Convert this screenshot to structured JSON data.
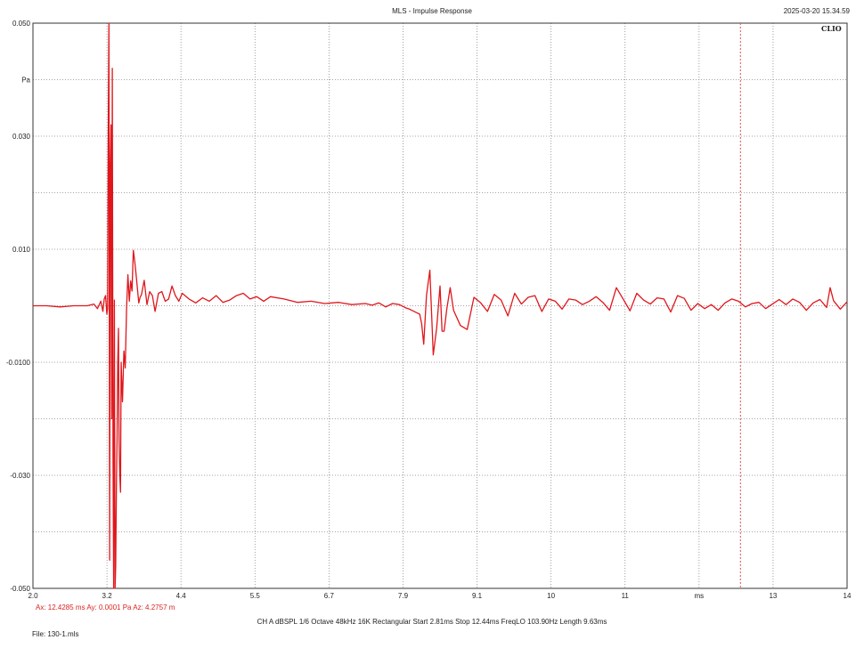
{
  "header": {
    "title": "MLS - Impulse Response",
    "timestamp": "2025-03-20 15.34.59",
    "brand": "CLIO"
  },
  "cursor": {
    "readout": "Ax: 12.4285 ms   Ay: 0.0001 Pa   Az: 4.2757 m",
    "x_value": 12.4285
  },
  "footer": {
    "settings": "CH A   dBSPL   1/6 Octave   48kHz   16K   Rectangular   Start 2.81ms    Stop 12.44ms    FreqLO 103.90Hz    Length 9.63ms",
    "file": "File: 130-1.mls"
  },
  "colors": {
    "trace": "#e0161b",
    "grid": "#888888",
    "cursor": "#e05050",
    "axis": "#333333"
  },
  "chart_data": {
    "type": "line",
    "title": "MLS - Impulse Response",
    "xlabel": "ms",
    "ylabel": "Pa",
    "xlim": [
      2.0,
      14.0
    ],
    "ylim": [
      -0.05,
      0.05
    ],
    "grid": true,
    "x_tick_labels": [
      "2.0",
      "3.2",
      "4.4",
      "5.5",
      "6.7",
      "7.9",
      "9.1",
      "10",
      "11",
      "ms",
      "13",
      "14"
    ],
    "y_tick_labels": [
      "0.050",
      "Pa",
      "0.030",
      "",
      "0.010",
      "",
      "-0.0100",
      "",
      "-0.030",
      "",
      "-0.050"
    ],
    "series": [
      {
        "x": [
          2.0,
          2.2,
          2.4,
          2.6,
          2.8,
          2.9,
          2.95,
          3.0,
          3.03,
          3.05,
          3.07,
          3.09,
          3.1,
          3.11,
          3.12,
          3.13,
          3.14,
          3.15,
          3.16,
          3.17,
          3.18,
          3.19,
          3.2,
          3.21,
          3.22,
          3.23,
          3.24,
          3.25,
          3.26,
          3.27,
          3.28,
          3.29,
          3.3,
          3.32,
          3.34,
          3.36,
          3.38,
          3.4,
          3.42,
          3.44,
          3.46,
          3.48,
          3.5,
          3.52,
          3.54,
          3.56,
          3.58,
          3.6,
          3.64,
          3.68,
          3.72,
          3.76,
          3.8,
          3.85,
          3.9,
          3.95,
          4.0,
          4.05,
          4.1,
          4.15,
          4.2,
          4.3,
          4.4,
          4.5,
          4.6,
          4.7,
          4.8,
          4.9,
          5.0,
          5.1,
          5.2,
          5.3,
          5.4,
          5.5,
          5.7,
          5.9,
          6.1,
          6.3,
          6.5,
          6.7,
          6.9,
          7.0,
          7.1,
          7.2,
          7.3,
          7.4,
          7.5,
          7.55,
          7.6,
          7.65,
          7.7,
          7.73,
          7.76,
          7.8,
          7.85,
          7.9,
          7.95,
          8.0,
          8.03,
          8.06,
          8.1,
          8.15,
          8.2,
          8.3,
          8.4,
          8.5,
          8.6,
          8.7,
          8.8,
          8.9,
          9.0,
          9.1,
          9.2,
          9.3,
          9.4,
          9.5,
          9.6,
          9.7,
          9.8,
          9.9,
          10.0,
          10.1,
          10.2,
          10.3,
          10.4,
          10.5,
          10.6,
          10.7,
          10.8,
          10.9,
          11.0,
          11.1,
          11.2,
          11.3,
          11.4,
          11.5,
          11.6,
          11.7,
          11.8,
          11.9,
          12.0,
          12.1,
          12.2,
          12.3,
          12.4,
          12.5,
          12.6,
          12.7,
          12.8,
          12.9,
          13.0,
          13.1,
          13.2,
          13.3,
          13.4,
          13.5,
          13.6,
          13.7,
          13.75,
          13.8,
          13.9,
          14.0
        ],
        "y": [
          0.0,
          0.0,
          -0.0002,
          0.0,
          0.0,
          0.0003,
          -0.0005,
          0.0008,
          -0.001,
          0.0012,
          0.0018,
          -0.0015,
          -0.0005,
          0.03,
          0.05,
          -0.045,
          0.025,
          0.032,
          -0.02,
          0.042,
          -0.0268,
          -0.05,
          0.001,
          -0.05,
          -0.046,
          -0.032,
          -0.024,
          -0.01,
          -0.004,
          -0.024,
          -0.03,
          -0.033,
          -0.01,
          -0.017,
          -0.008,
          -0.011,
          -0.0005,
          0.0055,
          0.0008,
          0.0044,
          0.0026,
          0.0098,
          0.0078,
          0.0055,
          0.003,
          0.0005,
          0.0015,
          0.002,
          0.0045,
          0.0002,
          0.0025,
          0.0018,
          -0.001,
          0.0022,
          0.0025,
          0.0008,
          0.0012,
          0.0035,
          0.0018,
          0.0008,
          0.0022,
          0.0012,
          0.0005,
          0.0014,
          0.0008,
          0.0018,
          0.0006,
          0.001,
          0.0018,
          0.0022,
          0.0012,
          0.0016,
          0.0008,
          0.0016,
          0.0012,
          0.0006,
          0.0008,
          0.0004,
          0.0006,
          0.0002,
          0.0004,
          0.0001,
          0.0005,
          -0.0002,
          0.0004,
          0.0002,
          -0.0004,
          -0.0006,
          -0.0009,
          -0.0012,
          -0.0015,
          -0.0032,
          -0.0068,
          0.0018,
          0.0063,
          -0.0087,
          -0.004,
          0.0035,
          -0.0045,
          -0.0045,
          -0.0006,
          0.0032,
          -0.0008,
          -0.0035,
          -0.0042,
          0.0015,
          0.0005,
          -0.001,
          0.002,
          0.001,
          -0.0018,
          0.0022,
          0.0003,
          0.0015,
          0.0018,
          -0.001,
          0.0012,
          0.0008,
          -0.0006,
          0.0012,
          0.001,
          0.0002,
          0.0008,
          0.0016,
          0.0006,
          -0.0008,
          0.0032,
          0.0012,
          -0.0009,
          0.0022,
          0.001,
          0.0003,
          0.0014,
          0.0012,
          -0.0011,
          0.0018,
          0.0013,
          -0.0008,
          0.0004,
          -0.0005,
          0.0002,
          -0.0008,
          0.0005,
          0.0012,
          0.0008,
          -0.0002,
          0.0004,
          0.0006,
          -0.0005,
          0.0003,
          0.0011,
          0.0002,
          0.0012,
          0.0006,
          -0.0008,
          0.0005,
          0.0011,
          -0.0003,
          0.0032,
          0.0009,
          -0.0006,
          0.0007
        ]
      }
    ]
  }
}
